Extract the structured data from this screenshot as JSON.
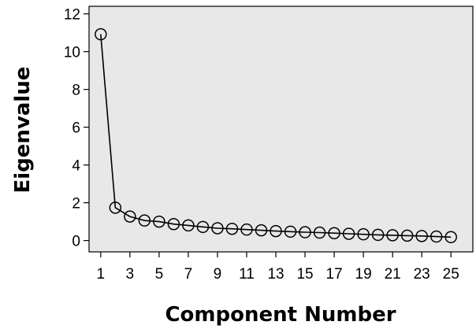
{
  "chart_data": {
    "type": "line",
    "title": "",
    "xlabel": "Component Number",
    "ylabel": "Eigenvalue",
    "x": [
      1,
      2,
      3,
      4,
      5,
      6,
      7,
      8,
      9,
      10,
      11,
      12,
      13,
      14,
      15,
      16,
      17,
      18,
      19,
      20,
      21,
      22,
      23,
      24,
      25
    ],
    "x_tick_labels": [
      "1",
      "3",
      "5",
      "7",
      "9",
      "11",
      "13",
      "15",
      "17",
      "19",
      "21",
      "23",
      "25"
    ],
    "x_tick_positions": [
      1,
      3,
      5,
      7,
      9,
      11,
      13,
      15,
      17,
      19,
      21,
      23,
      25
    ],
    "y_ticks": [
      0,
      2,
      4,
      6,
      8,
      10,
      12
    ],
    "xlim": [
      0.2,
      26.5
    ],
    "ylim": [
      -0.6,
      12.4
    ],
    "grid": false,
    "series": [
      {
        "values": [
          10.92,
          1.74,
          1.27,
          1.06,
          1.0,
          0.87,
          0.8,
          0.72,
          0.65,
          0.62,
          0.58,
          0.54,
          0.5,
          0.47,
          0.44,
          0.42,
          0.39,
          0.36,
          0.33,
          0.3,
          0.28,
          0.26,
          0.24,
          0.21,
          0.18
        ]
      }
    ],
    "colors": {
      "plot_background": "#e8e8e8",
      "line": "#000000",
      "marker_edge": "#000000"
    }
  }
}
